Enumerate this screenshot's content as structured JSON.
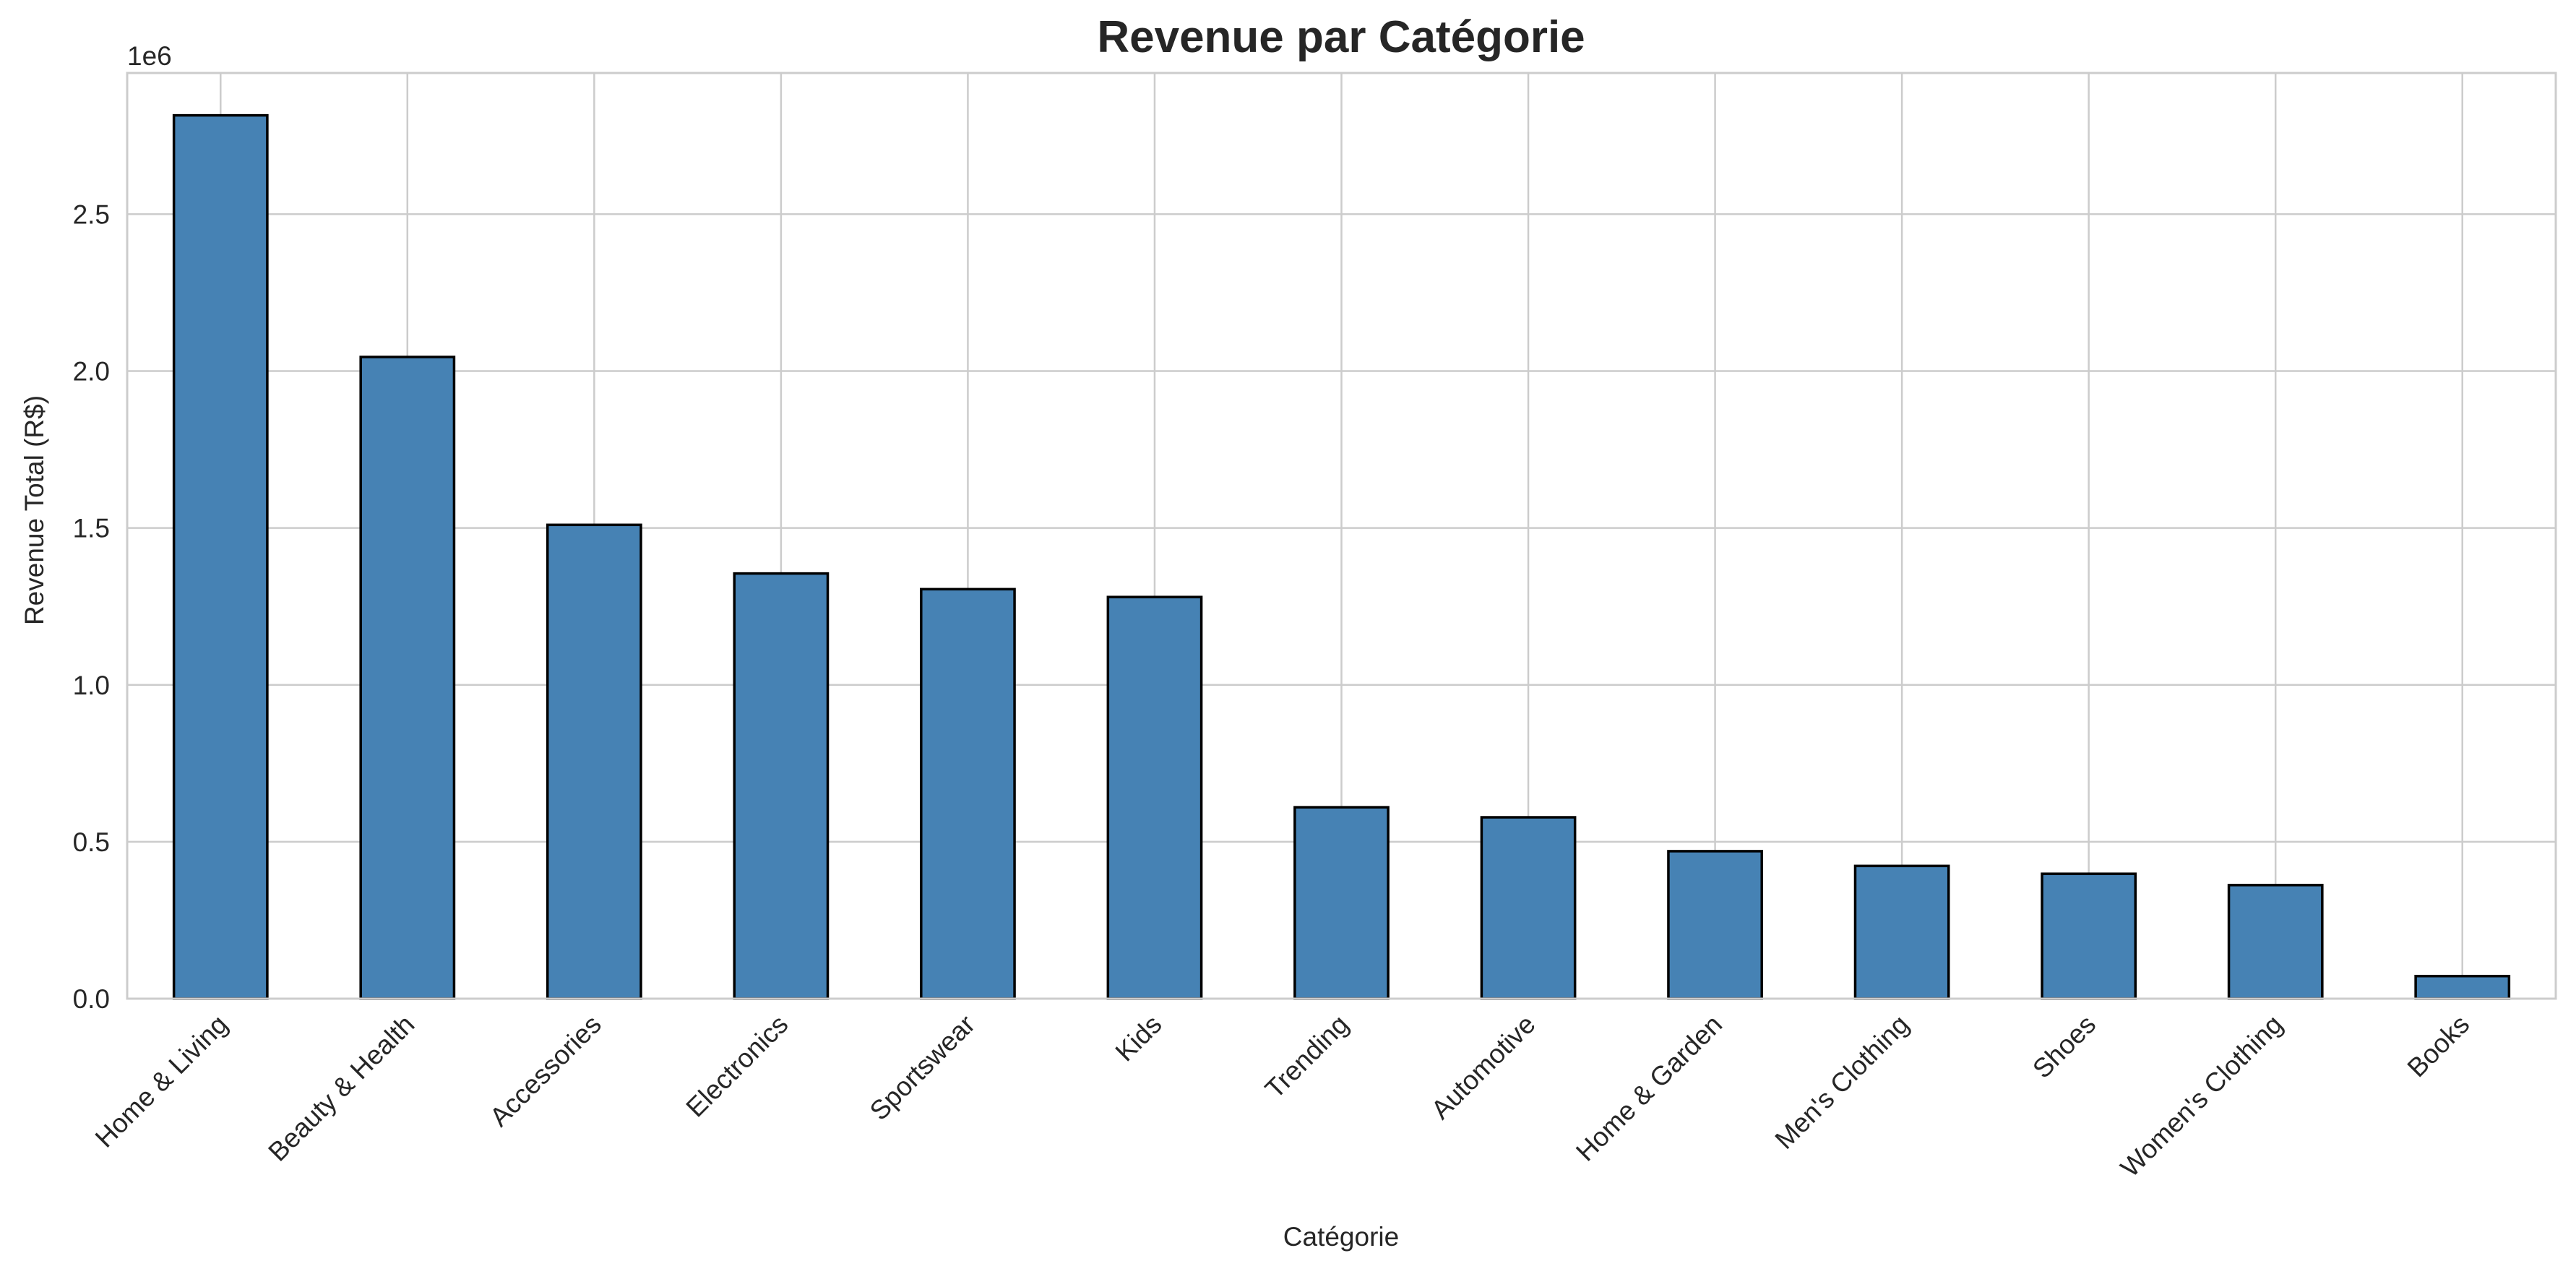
{
  "chart_data": {
    "type": "bar",
    "title": "Revenue par Catégorie",
    "xlabel": "Catégorie",
    "ylabel": "Revenue Total (R$)",
    "offset_label": "1e6",
    "categories": [
      "Home & Living",
      "Beauty & Health",
      "Accessories",
      "Electronics",
      "Sportswear",
      "Kids",
      "Trending",
      "Automotive",
      "Home & Garden",
      "Men's Clothing",
      "Shoes",
      "Women's Clothing",
      "Books"
    ],
    "values": [
      2815000,
      2045000,
      1510000,
      1355000,
      1305000,
      1280000,
      610000,
      578000,
      470000,
      423000,
      398000,
      362000,
      72000
    ],
    "ylim": [
      0,
      2950000
    ],
    "yticks": [
      0,
      500000,
      1000000,
      1500000,
      2000000,
      2500000
    ],
    "ytick_labels": [
      "0.0",
      "0.5",
      "1.0",
      "1.5",
      "2.0",
      "2.5"
    ],
    "grid": true,
    "colors": {
      "bar": "#4682b4",
      "edge": "#000000",
      "grid": "#cccccc",
      "spine": "#cccccc",
      "text": "#262626"
    }
  }
}
